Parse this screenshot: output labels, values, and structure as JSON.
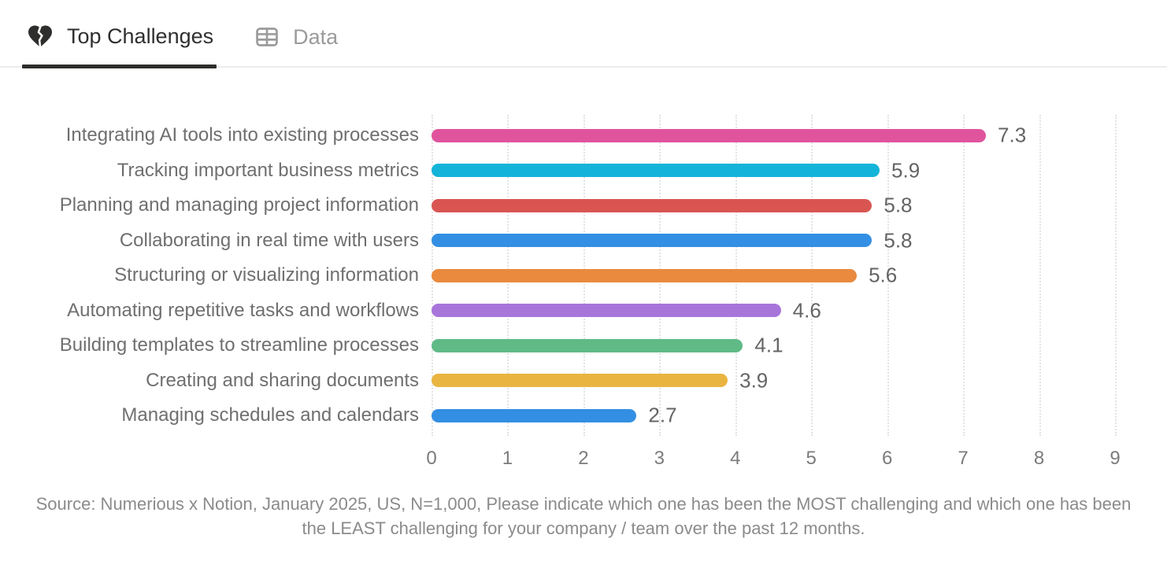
{
  "tabs": [
    {
      "label": "Top Challenges",
      "icon": "broken-heart-icon",
      "active": true
    },
    {
      "label": "Data",
      "icon": "table-icon",
      "active": false
    }
  ],
  "colors": {
    "active_tab_text": "#2f2f2f",
    "inactive_tab_text": "#9b9b9b",
    "active_tab_underline": "#2e2e2c",
    "gridline": "#e3e3e3",
    "label_text": "#6f6f6f",
    "value_text": "#646464",
    "tick_text": "#7b7b7b",
    "source_text": "#8b8b8b"
  },
  "chart_data": {
    "type": "bar",
    "orientation": "horizontal",
    "title": "Top Challenges",
    "xlabel": "",
    "ylabel": "",
    "categories": [
      "Integrating AI tools into existing processes",
      "Tracking important business metrics",
      "Planning and managing project information",
      "Collaborating in real time with users",
      "Structuring or visualizing information",
      "Automating repetitive tasks and workflows",
      "Building templates to streamline processes",
      "Creating and sharing documents",
      "Managing schedules and calendars"
    ],
    "values": [
      7.3,
      5.9,
      5.8,
      5.8,
      5.6,
      4.6,
      4.1,
      3.9,
      2.7
    ],
    "bar_colors": [
      "#e0549e",
      "#14b4d8",
      "#d95552",
      "#338fe3",
      "#e98a3e",
      "#a876db",
      "#5fba86",
      "#e9b440",
      "#338fe3"
    ],
    "xlim": [
      0,
      9
    ],
    "x_ticks": [
      0,
      1,
      2,
      3,
      4,
      5,
      6,
      7,
      8,
      9
    ],
    "grid": "dotted-vertical",
    "value_labels": true,
    "legend": "none"
  },
  "source_note": "Source: Numerious x Notion, January 2025, US, N=1,000, Please indicate which one has been the MOST challenging and which one has been the LEAST challenging for your company /  team over the past 12 months."
}
